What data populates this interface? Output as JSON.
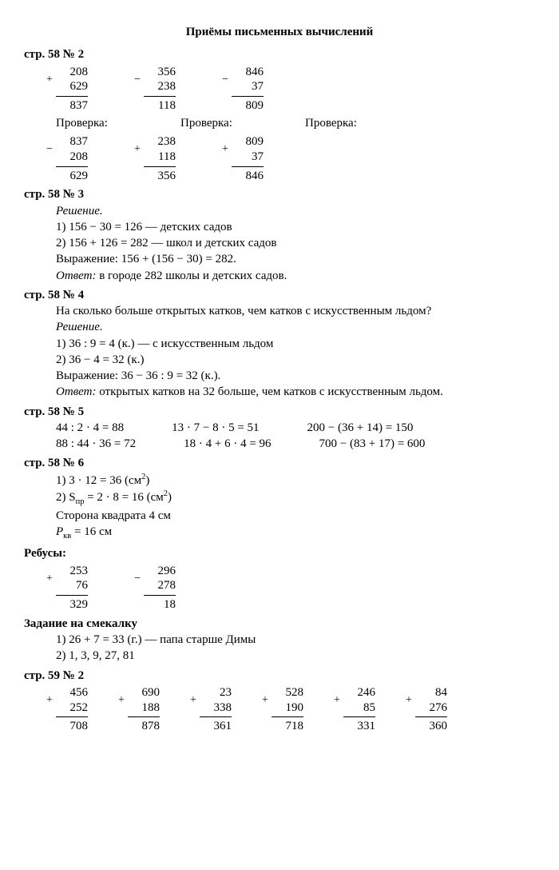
{
  "title": "Приёмы письменных вычислений",
  "h1": "стр. 58 № 2",
  "calcs1": [
    {
      "s": "+",
      "a": "208",
      "b": "629",
      "r": "837"
    },
    {
      "s": "−",
      "a": "356",
      "b": "238",
      "r": "118"
    },
    {
      "s": "−",
      "a": "846",
      "b": "37",
      "r": "809"
    }
  ],
  "proverka": "Проверка:",
  "calcs1p": [
    {
      "s": "−",
      "a": "837",
      "b": "208",
      "r": "629"
    },
    {
      "s": "+",
      "a": "238",
      "b": "118",
      "r": "356"
    },
    {
      "s": "+",
      "a": "809",
      "b": "37",
      "r": "846"
    }
  ],
  "h2": "стр. 58 № 3",
  "t3": {
    "l0": "Решение.",
    "l1": "1) 156 − 30 = 126 — детских садов",
    "l2": "2) 156 + 126 = 282 — школ и детских садов",
    "l3": "Выражение: 156 + (156 − 30) = 282.",
    "l4a": "Ответ:",
    "l4b": " в городе 282 школы и детских садов."
  },
  "h3": "стр. 58 № 4",
  "t4": {
    "q": "На сколько больше открытых катков, чем катков с искусственным льдом?",
    "l0": "Решение.",
    "l1": "1) 36 : 9 = 4 (к.) — с искусственным льдом",
    "l2": "2) 36 − 4 = 32 (к.)",
    "l3": "Выражение: 36 − 36 : 9 = 32 (к.).",
    "l4a": "Ответ:",
    "l4b": " открытых катков на 32 больше, чем катков с искусственным льдом."
  },
  "h4": "стр. 58 № 5",
  "eq5": {
    "a1": "44 : 2 · 4 = 88",
    "b1": "13 · 7 − 8 · 5 = 51",
    "c1": "200 − (36 + 14) = 150",
    "a2": "88 : 44 · 36 = 72",
    "b2": "18 · 4 + 6 · 4 = 96",
    "c2": "700 − (83 + 17) = 600"
  },
  "h5": "стр. 58 № 6",
  "t6": {
    "l1a": "1) 3 · 12 = 36 (см",
    "l1b": "2",
    "l1c": ")",
    "l2a": "2) S",
    "l2sub": "пр",
    "l2b": " = 2 · 8 = 16 (см",
    "l2c": "2",
    "l2d": ")",
    "l3": "Сторона квадрата 4 см",
    "l4a": "P",
    "l4sub": "кв",
    "l4b": " = 16 см"
  },
  "h6": "Ребусы:",
  "calcsR": [
    {
      "s": "+",
      "a": "253",
      "b": "76",
      "r": "329"
    },
    {
      "s": "−",
      "a": "296",
      "b": "278",
      "r": "18"
    }
  ],
  "h7": "Задание на смекалку",
  "t7": {
    "l1": "1) 26 + 7 = 33 (г.) — папа старше Димы",
    "l2": "2) 1, 3, 9, 27, 81"
  },
  "h8": "стр. 59 № 2",
  "calcs8": [
    {
      "s": "+",
      "a": "456",
      "b": "252",
      "r": "708"
    },
    {
      "s": "+",
      "a": "690",
      "b": "188",
      "r": "878"
    },
    {
      "s": "+",
      "a": "23",
      "b": "338",
      "r": "361"
    },
    {
      "s": "+",
      "a": "528",
      "b": "190",
      "r": "718"
    },
    {
      "s": "+",
      "a": "246",
      "b": "85",
      "r": "331"
    },
    {
      "s": "+",
      "a": "84",
      "b": "276",
      "r": "360"
    }
  ]
}
